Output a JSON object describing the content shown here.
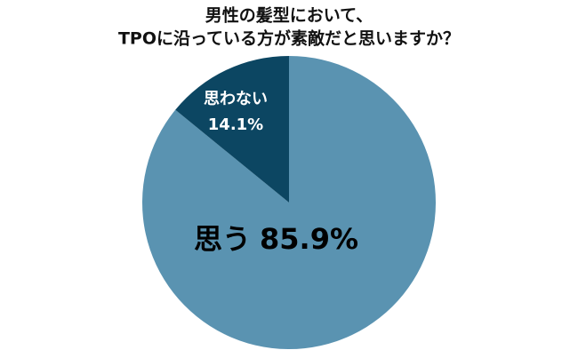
{
  "chart_data": {
    "type": "pie",
    "title": [
      "男性の髪型において、",
      "TPOに沿っている方が素敵だと思いますか？"
    ],
    "categories": [
      "思う",
      "思わない"
    ],
    "values": [
      85.9,
      14.1
    ],
    "value_labels": [
      "85.9%",
      "14.1%"
    ],
    "colors": [
      "#5a93b1",
      "#0c4662"
    ]
  }
}
